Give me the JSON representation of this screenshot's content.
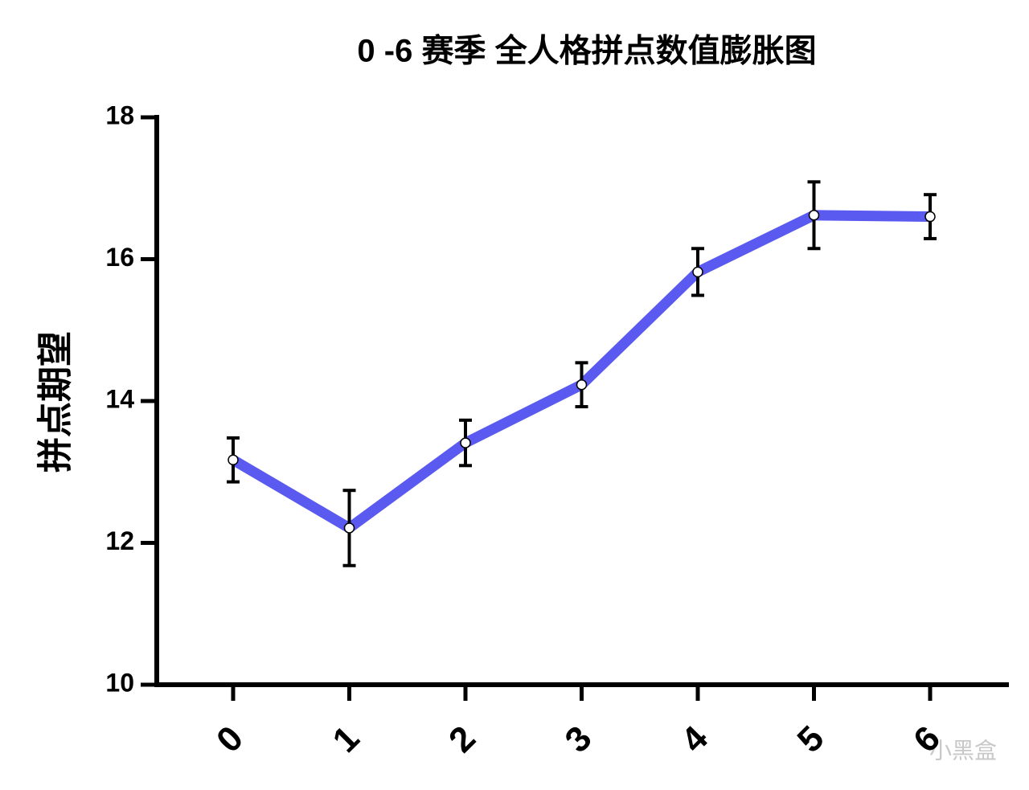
{
  "chart_data": {
    "type": "line",
    "title": "0 -6 赛季 全人格拼点数值膨胀图",
    "y_label": "拼点期望",
    "watermark": "小黑盒",
    "categories": [
      "0",
      "1",
      "2",
      "3",
      "4",
      "5",
      "6"
    ],
    "values": [
      13.17,
      12.21,
      13.41,
      14.23,
      15.82,
      16.62,
      16.6
    ],
    "errors": [
      0.31,
      0.53,
      0.32,
      0.31,
      0.33,
      0.47,
      0.31
    ],
    "color": "#5a5af0",
    "ylim": [
      10,
      18
    ],
    "yticks": [
      10,
      12,
      14,
      16,
      18
    ],
    "grid": false
  }
}
